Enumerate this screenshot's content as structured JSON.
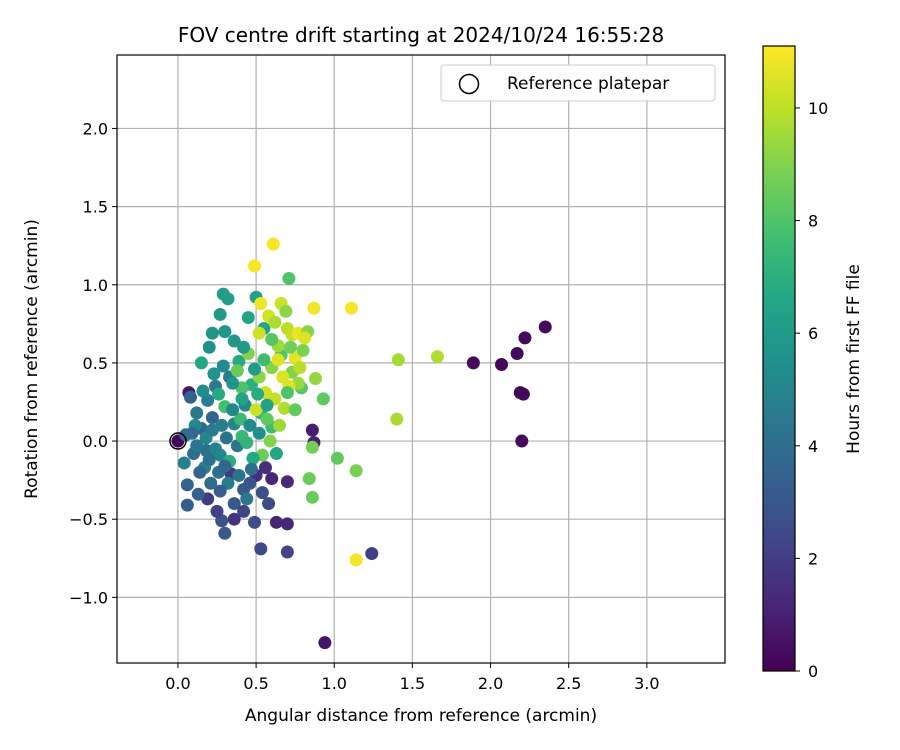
{
  "chart_data": {
    "type": "scatter",
    "title": "FOV centre drift starting at 2024/10/24 16:55:28",
    "xlabel": "Angular distance from reference (arcmin)",
    "ylabel": "Rotation from reference (arcmin)",
    "xlim": [
      -0.39,
      3.5
    ],
    "ylim": [
      -1.42,
      2.47
    ],
    "xticks": [
      "0.0",
      "0.5",
      "1.0",
      "1.5",
      "2.0",
      "2.5",
      "3.0"
    ],
    "xtick_values": [
      0,
      0.5,
      1.0,
      1.5,
      2.0,
      2.5,
      3.0
    ],
    "yticks": [
      "−1.0",
      "−0.5",
      "0.0",
      "0.5",
      "1.0",
      "1.5",
      "2.0"
    ],
    "ytick_values": [
      -1.0,
      -0.5,
      0.0,
      0.5,
      1.0,
      1.5,
      2.0
    ],
    "grid": true,
    "legend": {
      "placement": "top-right",
      "entries": [
        "Reference platepar"
      ]
    },
    "reference_point": {
      "x": 0.0,
      "y": 0.0
    },
    "colorbar": {
      "label": "Hours from first FF file",
      "colormap": "viridis",
      "range": [
        0,
        11.1
      ],
      "ticks": [
        "0",
        "2",
        "4",
        "6",
        "8",
        "10"
      ],
      "tick_values": [
        0,
        2,
        4,
        6,
        8,
        10
      ]
    },
    "points": [
      {
        "x": 0.0,
        "y": 0.0,
        "h": 0.1
      },
      {
        "x": 1.89,
        "y": 0.5,
        "h": 0.2
      },
      {
        "x": 2.07,
        "y": 0.49,
        "h": 0.2
      },
      {
        "x": 2.17,
        "y": 0.56,
        "h": 0.3
      },
      {
        "x": 2.22,
        "y": 0.66,
        "h": 0.3
      },
      {
        "x": 2.35,
        "y": 0.73,
        "h": 0.3
      },
      {
        "x": 2.19,
        "y": 0.31,
        "h": 0.2
      },
      {
        "x": 2.21,
        "y": 0.3,
        "h": 0.2
      },
      {
        "x": 2.2,
        "y": 0.0,
        "h": 0.3
      },
      {
        "x": 0.94,
        "y": -1.29,
        "h": 0.6
      },
      {
        "x": 0.07,
        "y": 0.31,
        "h": 0.7
      },
      {
        "x": 0.86,
        "y": 0.07,
        "h": 0.9
      },
      {
        "x": 0.87,
        "y": -0.01,
        "h": 1.0
      },
      {
        "x": 0.63,
        "y": -0.52,
        "h": 1.1
      },
      {
        "x": 0.7,
        "y": -0.53,
        "h": 1.2
      },
      {
        "x": 0.6,
        "y": -0.24,
        "h": 1.2
      },
      {
        "x": 0.7,
        "y": -0.26,
        "h": 1.3
      },
      {
        "x": 0.5,
        "y": -0.22,
        "h": 1.4
      },
      {
        "x": 0.56,
        "y": -0.17,
        "h": 1.5
      },
      {
        "x": 0.36,
        "y": -0.5,
        "h": 1.6
      },
      {
        "x": 0.34,
        "y": -0.21,
        "h": 1.8
      },
      {
        "x": 0.19,
        "y": -0.37,
        "h": 1.9
      },
      {
        "x": 1.24,
        "y": -0.72,
        "h": 2.0
      },
      {
        "x": 0.7,
        "y": -0.71,
        "h": 2.3
      },
      {
        "x": 0.53,
        "y": -0.69,
        "h": 2.4
      },
      {
        "x": 0.49,
        "y": -0.52,
        "h": 2.6
      },
      {
        "x": 0.28,
        "y": -0.51,
        "h": 2.8
      },
      {
        "x": 0.3,
        "y": -0.59,
        "h": 3.0
      },
      {
        "x": 0.42,
        "y": -0.31,
        "h": 3.1
      },
      {
        "x": 0.06,
        "y": -0.41,
        "h": 3.2
      },
      {
        "x": 0.13,
        "y": -0.34,
        "h": 3.4
      },
      {
        "x": 0.08,
        "y": 0.28,
        "h": 3.5
      },
      {
        "x": 0.22,
        "y": 0.15,
        "h": 3.6
      },
      {
        "x": 0.15,
        "y": 0.08,
        "h": 3.7
      },
      {
        "x": 0.05,
        "y": 0.04,
        "h": 3.8
      },
      {
        "x": 0.1,
        "y": -0.08,
        "h": 3.9
      },
      {
        "x": 0.26,
        "y": -0.2,
        "h": 4.0
      },
      {
        "x": 0.18,
        "y": -0.06,
        "h": 4.1
      },
      {
        "x": 0.31,
        "y": 0.02,
        "h": 4.2
      },
      {
        "x": 0.38,
        "y": -0.03,
        "h": 4.3
      },
      {
        "x": 0.12,
        "y": 0.18,
        "h": 4.4
      },
      {
        "x": 0.24,
        "y": 0.35,
        "h": 4.5
      },
      {
        "x": 0.33,
        "y": 0.41,
        "h": 4.6
      },
      {
        "x": 0.19,
        "y": 0.26,
        "h": 4.7
      },
      {
        "x": 0.04,
        "y": -0.14,
        "h": 4.8
      },
      {
        "x": 0.17,
        "y": -0.17,
        "h": 4.9
      },
      {
        "x": 0.27,
        "y": -0.09,
        "h": 5.0
      },
      {
        "x": 0.36,
        "y": 0.11,
        "h": 5.1
      },
      {
        "x": 0.43,
        "y": 0.23,
        "h": 5.2
      },
      {
        "x": 0.29,
        "y": 0.48,
        "h": 5.3
      },
      {
        "x": 0.2,
        "y": 0.6,
        "h": 5.5
      },
      {
        "x": 0.22,
        "y": 0.69,
        "h": 5.7
      },
      {
        "x": 0.3,
        "y": 0.7,
        "h": 5.8
      },
      {
        "x": 0.36,
        "y": 0.64,
        "h": 5.9
      },
      {
        "x": 0.27,
        "y": 0.81,
        "h": 6.0
      },
      {
        "x": 0.29,
        "y": 0.94,
        "h": 6.1
      },
      {
        "x": 0.32,
        "y": 0.91,
        "h": 6.2
      },
      {
        "x": 0.5,
        "y": 0.92,
        "h": 6.3
      },
      {
        "x": 0.45,
        "y": 0.79,
        "h": 6.4
      },
      {
        "x": 0.55,
        "y": 0.72,
        "h": 6.5
      },
      {
        "x": 0.15,
        "y": 0.5,
        "h": 6.6
      },
      {
        "x": 0.26,
        "y": 0.3,
        "h": 6.7
      },
      {
        "x": 0.39,
        "y": 0.51,
        "h": 6.8
      },
      {
        "x": 0.47,
        "y": 0.36,
        "h": 7.0
      },
      {
        "x": 0.53,
        "y": 0.18,
        "h": 7.2
      },
      {
        "x": 0.41,
        "y": 0.03,
        "h": 7.4
      },
      {
        "x": 0.6,
        "y": 0.09,
        "h": 7.6
      },
      {
        "x": 0.71,
        "y": 1.04,
        "h": 8.0
      },
      {
        "x": 0.66,
        "y": 0.55,
        "h": 8.1
      },
      {
        "x": 0.79,
        "y": 0.34,
        "h": 8.2
      },
      {
        "x": 0.93,
        "y": 0.27,
        "h": 8.3
      },
      {
        "x": 1.02,
        "y": -0.11,
        "h": 8.4
      },
      {
        "x": 0.86,
        "y": -0.36,
        "h": 8.5
      },
      {
        "x": 0.84,
        "y": -0.24,
        "h": 8.6
      },
      {
        "x": 0.86,
        "y": -0.04,
        "h": 8.7
      },
      {
        "x": 1.14,
        "y": -0.19,
        "h": 8.8
      },
      {
        "x": 0.73,
        "y": 0.44,
        "h": 9.0
      },
      {
        "x": 0.6,
        "y": 0.47,
        "h": 9.1
      },
      {
        "x": 0.52,
        "y": 0.41,
        "h": 9.2
      },
      {
        "x": 0.88,
        "y": 0.4,
        "h": 9.3
      },
      {
        "x": 0.77,
        "y": 0.37,
        "h": 9.4
      },
      {
        "x": 0.64,
        "y": 0.61,
        "h": 9.5
      },
      {
        "x": 1.41,
        "y": 0.52,
        "h": 9.6
      },
      {
        "x": 1.4,
        "y": 0.14,
        "h": 9.7
      },
      {
        "x": 1.66,
        "y": 0.54,
        "h": 9.8
      },
      {
        "x": 0.7,
        "y": 0.72,
        "h": 10.0
      },
      {
        "x": 0.73,
        "y": 0.68,
        "h": 10.1
      },
      {
        "x": 0.66,
        "y": 0.88,
        "h": 10.2
      },
      {
        "x": 0.52,
        "y": 0.69,
        "h": 10.3
      },
      {
        "x": 0.58,
        "y": 0.8,
        "h": 10.4
      },
      {
        "x": 0.67,
        "y": 0.41,
        "h": 10.5
      },
      {
        "x": 0.71,
        "y": 0.35,
        "h": 10.6
      },
      {
        "x": 0.75,
        "y": 0.53,
        "h": 10.7
      },
      {
        "x": 0.77,
        "y": 0.69,
        "h": 10.8
      },
      {
        "x": 0.87,
        "y": 0.85,
        "h": 10.9
      },
      {
        "x": 1.11,
        "y": 0.85,
        "h": 11.0
      },
      {
        "x": 0.49,
        "y": 1.12,
        "h": 11.0
      },
      {
        "x": 0.61,
        "y": 1.26,
        "h": 11.0
      },
      {
        "x": 1.14,
        "y": -0.76,
        "h": 11.0
      },
      {
        "x": 0.53,
        "y": 0.88,
        "h": 10.9
      },
      {
        "x": 0.64,
        "y": 0.52,
        "h": 10.6
      },
      {
        "x": 0.56,
        "y": 0.31,
        "h": 10.3
      },
      {
        "x": 0.62,
        "y": 0.27,
        "h": 10.1
      },
      {
        "x": 0.5,
        "y": 0.2,
        "h": 10.2
      },
      {
        "x": 0.68,
        "y": 0.21,
        "h": 9.8
      },
      {
        "x": 0.65,
        "y": 0.1,
        "h": 9.5
      },
      {
        "x": 0.59,
        "y": 0.0,
        "h": 9.0
      },
      {
        "x": 0.54,
        "y": -0.09,
        "h": 8.6
      },
      {
        "x": 0.57,
        "y": 0.14,
        "h": 8.3
      },
      {
        "x": 0.7,
        "y": 0.31,
        "h": 8.0
      },
      {
        "x": 0.75,
        "y": 0.2,
        "h": 8.4
      },
      {
        "x": 0.8,
        "y": 0.58,
        "h": 8.9
      },
      {
        "x": 0.83,
        "y": 0.7,
        "h": 9.1
      },
      {
        "x": 0.62,
        "y": 0.76,
        "h": 9.7
      },
      {
        "x": 0.45,
        "y": 0.56,
        "h": 9.0
      },
      {
        "x": 0.38,
        "y": 0.45,
        "h": 8.5
      },
      {
        "x": 0.41,
        "y": 0.34,
        "h": 8.0
      },
      {
        "x": 0.3,
        "y": 0.22,
        "h": 7.7
      },
      {
        "x": 0.4,
        "y": 0.14,
        "h": 7.5
      },
      {
        "x": 0.44,
        "y": -0.01,
        "h": 7.2
      },
      {
        "x": 0.33,
        "y": -0.13,
        "h": 6.9
      },
      {
        "x": 0.48,
        "y": -0.11,
        "h": 6.7
      },
      {
        "x": 0.63,
        "y": -0.08,
        "h": 6.5
      },
      {
        "x": 0.57,
        "y": 0.23,
        "h": 6.3
      },
      {
        "x": 0.49,
        "y": 0.46,
        "h": 6.1
      },
      {
        "x": 0.42,
        "y": 0.6,
        "h": 6.0
      },
      {
        "x": 0.35,
        "y": 0.37,
        "h": 5.8
      },
      {
        "x": 0.23,
        "y": 0.43,
        "h": 5.6
      },
      {
        "x": 0.16,
        "y": 0.32,
        "h": 5.4
      },
      {
        "x": 0.11,
        "y": 0.1,
        "h": 5.2
      },
      {
        "x": 0.18,
        "y": 0.02,
        "h": 5.0
      },
      {
        "x": 0.24,
        "y": -0.05,
        "h": 4.9
      },
      {
        "x": 0.32,
        "y": -0.27,
        "h": 4.6
      },
      {
        "x": 0.44,
        "y": -0.37,
        "h": 4.4
      },
      {
        "x": 0.39,
        "y": -0.22,
        "h": 4.2
      },
      {
        "x": 0.47,
        "y": -0.18,
        "h": 4.0
      },
      {
        "x": 0.21,
        "y": -0.27,
        "h": 3.8
      },
      {
        "x": 0.14,
        "y": -0.2,
        "h": 3.6
      },
      {
        "x": 0.06,
        "y": -0.28,
        "h": 3.4
      },
      {
        "x": 0.27,
        "y": -0.32,
        "h": 3.3
      },
      {
        "x": 0.36,
        "y": -0.4,
        "h": 3.1
      },
      {
        "x": 0.46,
        "y": -0.27,
        "h": 2.9
      },
      {
        "x": 0.54,
        "y": -0.33,
        "h": 2.7
      },
      {
        "x": 0.58,
        "y": -0.4,
        "h": 2.5
      },
      {
        "x": 0.42,
        "y": -0.45,
        "h": 2.2
      },
      {
        "x": 0.25,
        "y": -0.45,
        "h": 2.1
      },
      {
        "x": 0.22,
        "y": 0.07,
        "h": 4.5
      },
      {
        "x": 0.28,
        "y": 0.1,
        "h": 4.7
      },
      {
        "x": 0.35,
        "y": 0.2,
        "h": 5.1
      },
      {
        "x": 0.46,
        "y": 0.1,
        "h": 5.3
      },
      {
        "x": 0.52,
        "y": 0.05,
        "h": 5.5
      },
      {
        "x": 0.12,
        "y": -0.03,
        "h": 4.3
      },
      {
        "x": 0.2,
        "y": -0.12,
        "h": 4.1
      },
      {
        "x": 0.09,
        "y": 0.05,
        "h": 3.9
      },
      {
        "x": 0.3,
        "y": -0.16,
        "h": 3.7
      },
      {
        "x": 0.41,
        "y": 0.27,
        "h": 6.4
      },
      {
        "x": 0.51,
        "y": 0.3,
        "h": 6.9
      },
      {
        "x": 0.55,
        "y": 0.52,
        "h": 7.6
      },
      {
        "x": 0.6,
        "y": 0.65,
        "h": 8.1
      },
      {
        "x": 0.72,
        "y": 0.6,
        "h": 8.7
      },
      {
        "x": 0.69,
        "y": 0.83,
        "h": 9.2
      },
      {
        "x": 0.78,
        "y": 0.47,
        "h": 9.9
      },
      {
        "x": 0.81,
        "y": 0.66,
        "h": 10.5
      }
    ]
  }
}
